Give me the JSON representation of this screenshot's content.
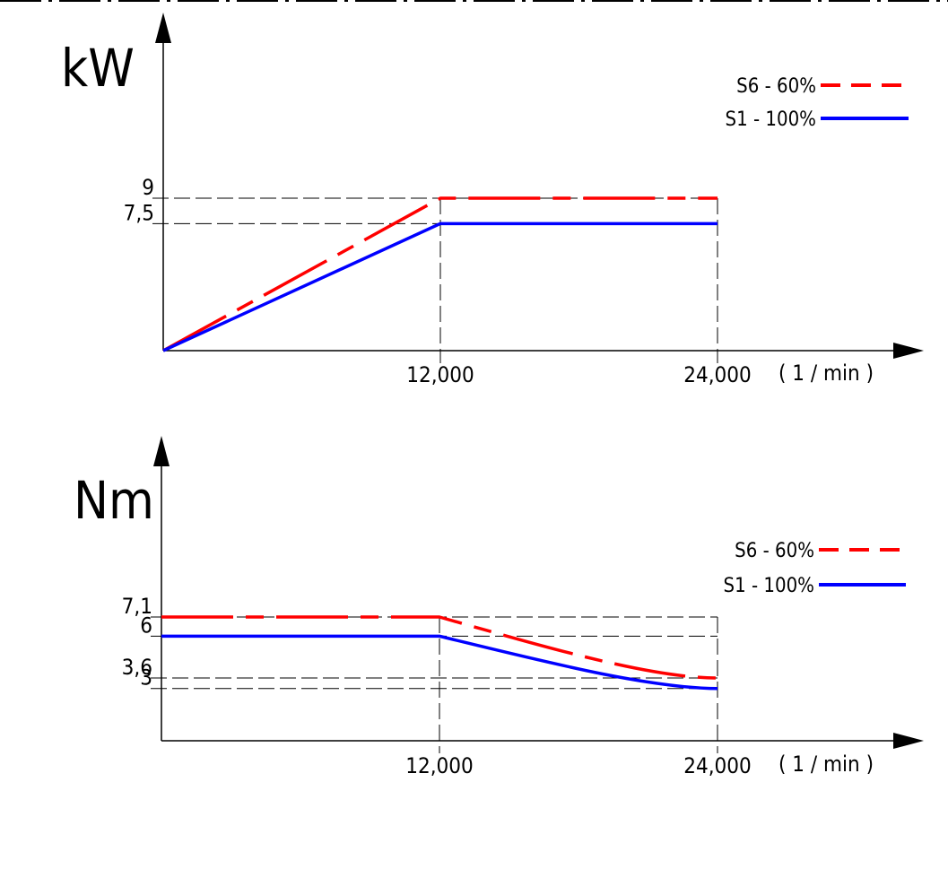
{
  "chart_data": [
    {
      "type": "line",
      "ylabel": "kW",
      "x_unit": "( 1 / min )",
      "x_ticks": [
        "12,000",
        "24,000"
      ],
      "y_ticks": [
        "9",
        "7,5"
      ],
      "x_range": [
        0,
        24000
      ],
      "series": [
        {
          "name": "S6 - 60%",
          "color": "#ff0000",
          "style": "dashed",
          "x": [
            0,
            12000,
            24000
          ],
          "y": [
            0,
            9,
            9
          ]
        },
        {
          "name": "S1 - 100%",
          "color": "#0000ff",
          "style": "solid",
          "x": [
            0,
            12000,
            24000
          ],
          "y": [
            0,
            7.5,
            7.5
          ]
        }
      ],
      "legend_position": "top-right",
      "grid": false
    },
    {
      "type": "line",
      "ylabel": "Nm",
      "x_unit": "( 1 / min )",
      "x_ticks": [
        "12,000",
        "24,000"
      ],
      "y_ticks": [
        "7,1",
        "6",
        "3,6",
        "3"
      ],
      "x_range": [
        0,
        24000
      ],
      "series": [
        {
          "name": "S6 - 60%",
          "color": "#ff0000",
          "style": "dashed",
          "x": [
            0,
            12000,
            18000,
            24000
          ],
          "y": [
            7.1,
            7.1,
            5.0,
            3.6
          ]
        },
        {
          "name": "S1 - 100%",
          "color": "#0000ff",
          "style": "solid",
          "x": [
            0,
            12000,
            18000,
            24000
          ],
          "y": [
            6,
            6,
            4.2,
            3
          ]
        }
      ],
      "legend_position": "top-right",
      "grid": false
    }
  ]
}
